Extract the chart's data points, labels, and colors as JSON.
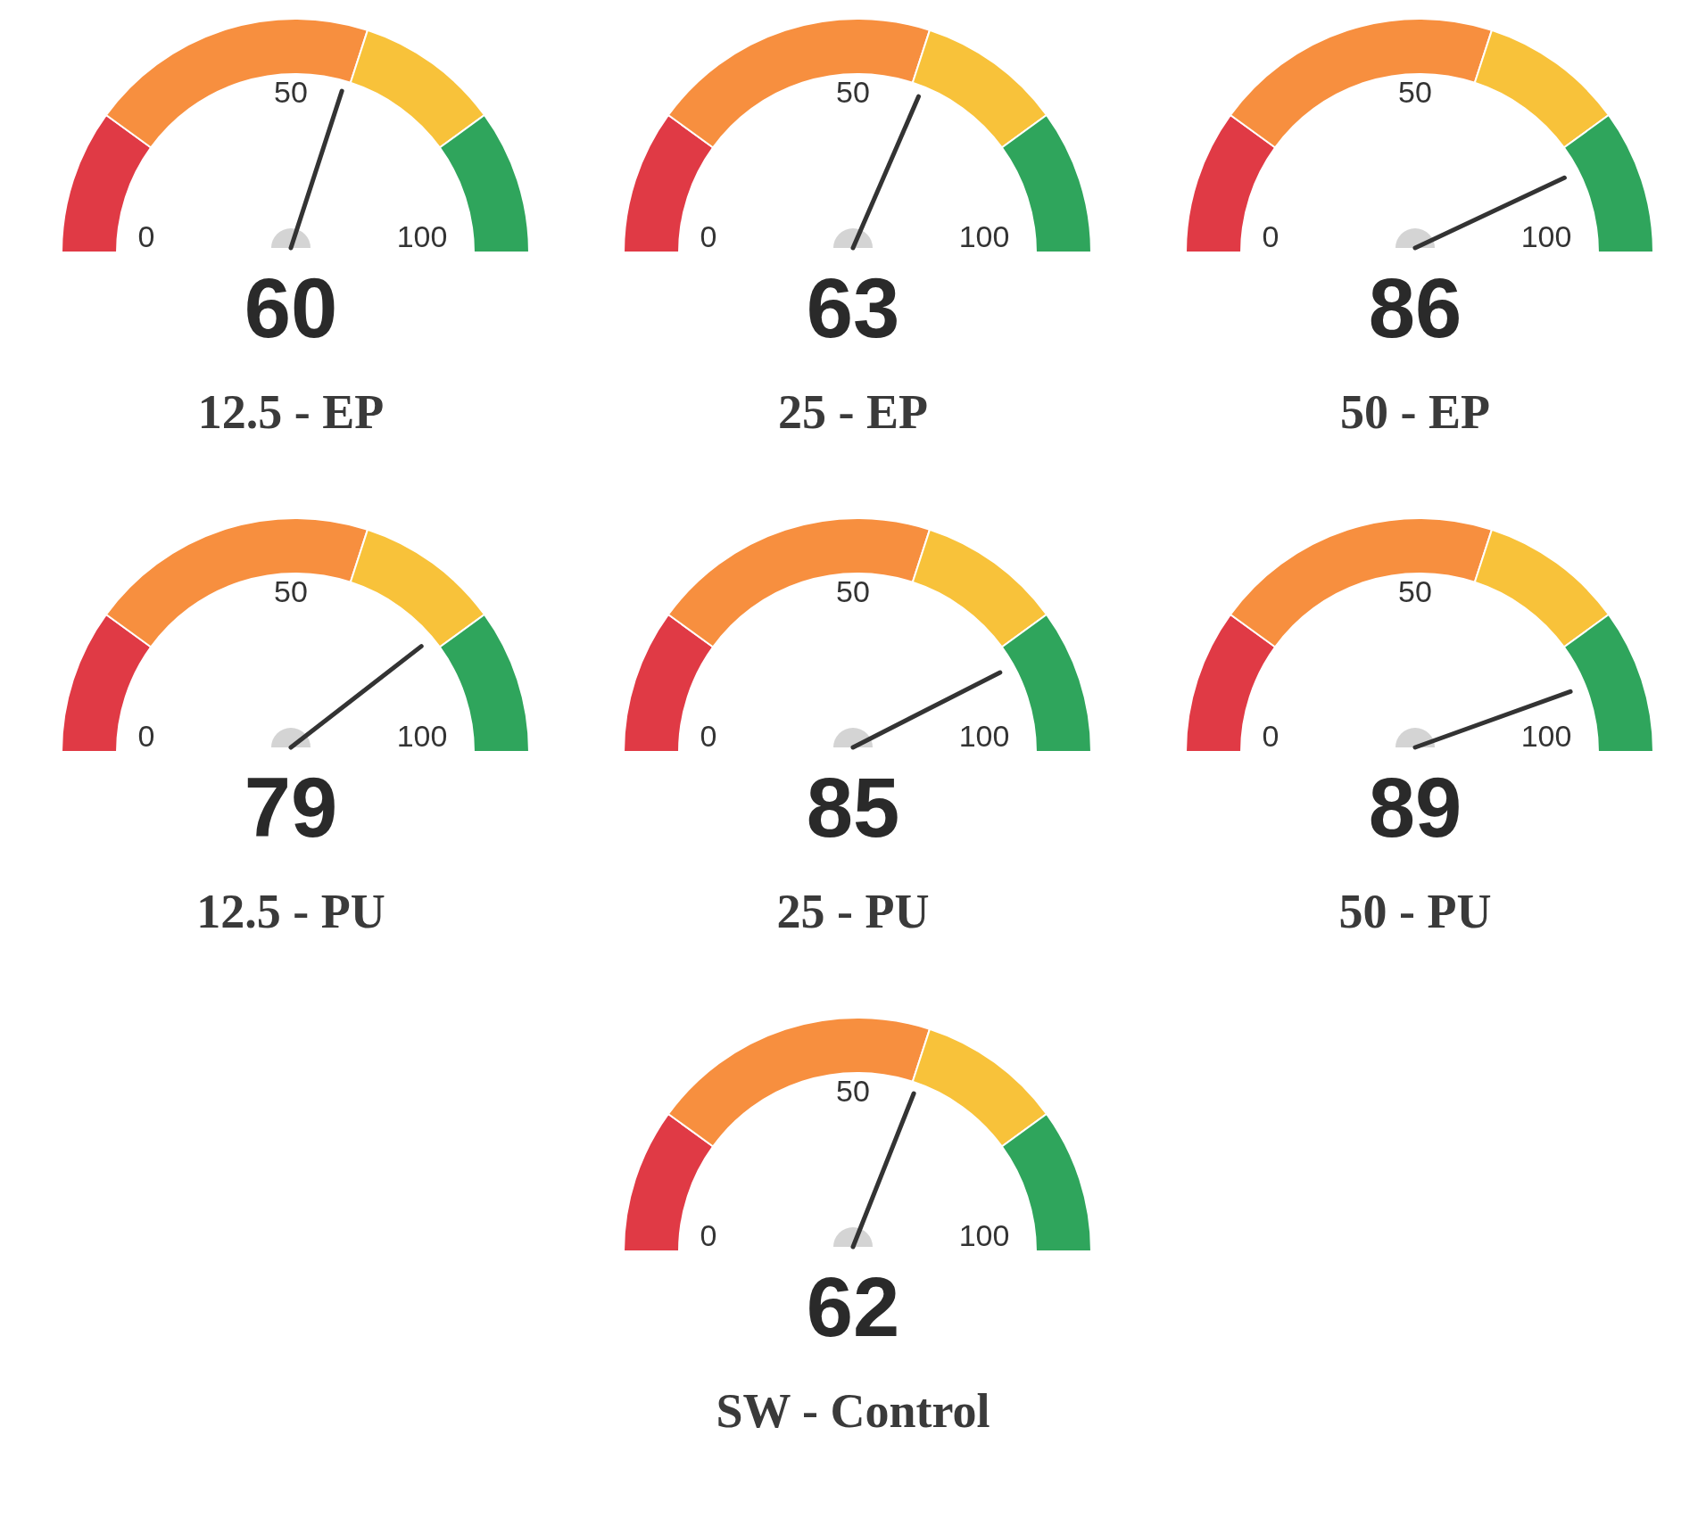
{
  "chart_data": [
    {
      "type": "donut",
      "title": "12.5 - EP",
      "categories": [
        null,
        null,
        null,
        null
      ],
      "values": [
        20,
        40,
        20,
        20
      ],
      "colors": [
        "#e03a45",
        "#f78f3f",
        "#f8c23a",
        "#2fa55c"
      ],
      "annotations": [
        "60",
        "0",
        "50",
        "100"
      ]
    },
    {
      "type": "donut",
      "title": "25 - EP",
      "categories": [
        null,
        null,
        null,
        null
      ],
      "values": [
        20,
        40,
        20,
        20
      ],
      "colors": [
        "#e03a45",
        "#f78f3f",
        "#f8c23a",
        "#2fa55c"
      ],
      "annotations": [
        "63",
        "0",
        "50",
        "100"
      ]
    },
    {
      "type": "donut",
      "title": "50 - EP",
      "categories": [
        null,
        null,
        null,
        null
      ],
      "values": [
        20,
        40,
        20,
        20
      ],
      "colors": [
        "#e03a45",
        "#f78f3f",
        "#f8c23a",
        "#2fa55c"
      ],
      "annotations": [
        "86",
        "0",
        "50",
        "100"
      ]
    },
    {
      "type": "donut",
      "title": "12.5 - PU",
      "categories": [
        null,
        null,
        null,
        null
      ],
      "values": [
        20,
        40,
        20,
        20
      ],
      "colors": [
        "#e03a45",
        "#f78f3f",
        "#f8c23a",
        "#2fa55c"
      ],
      "annotations": [
        "79",
        "0",
        "50",
        "100"
      ]
    },
    {
      "type": "donut",
      "title": "25 - PU",
      "categories": [
        null,
        null,
        null,
        null
      ],
      "values": [
        20,
        40,
        20,
        20
      ],
      "colors": [
        "#e03a45",
        "#f78f3f",
        "#f8c23a",
        "#2fa55c"
      ],
      "annotations": [
        "85",
        "0",
        "50",
        "100"
      ]
    },
    {
      "type": "donut",
      "title": "50 - PU",
      "categories": [
        null,
        null,
        null,
        null
      ],
      "values": [
        20,
        40,
        20,
        20
      ],
      "colors": [
        "#e03a45",
        "#f78f3f",
        "#f8c23a",
        "#2fa55c"
      ],
      "annotations": [
        "89",
        "0",
        "50",
        "100"
      ]
    },
    {
      "type": "donut",
      "title": "SW - Control",
      "categories": [
        null,
        null,
        null,
        null
      ],
      "values": [
        20,
        40,
        20,
        20
      ],
      "colors": [
        "#e03a45",
        "#f78f3f",
        "#f8c23a",
        "#2fa55c"
      ],
      "annotations": [
        "62",
        "0",
        "50",
        "100"
      ]
    }
  ]
}
